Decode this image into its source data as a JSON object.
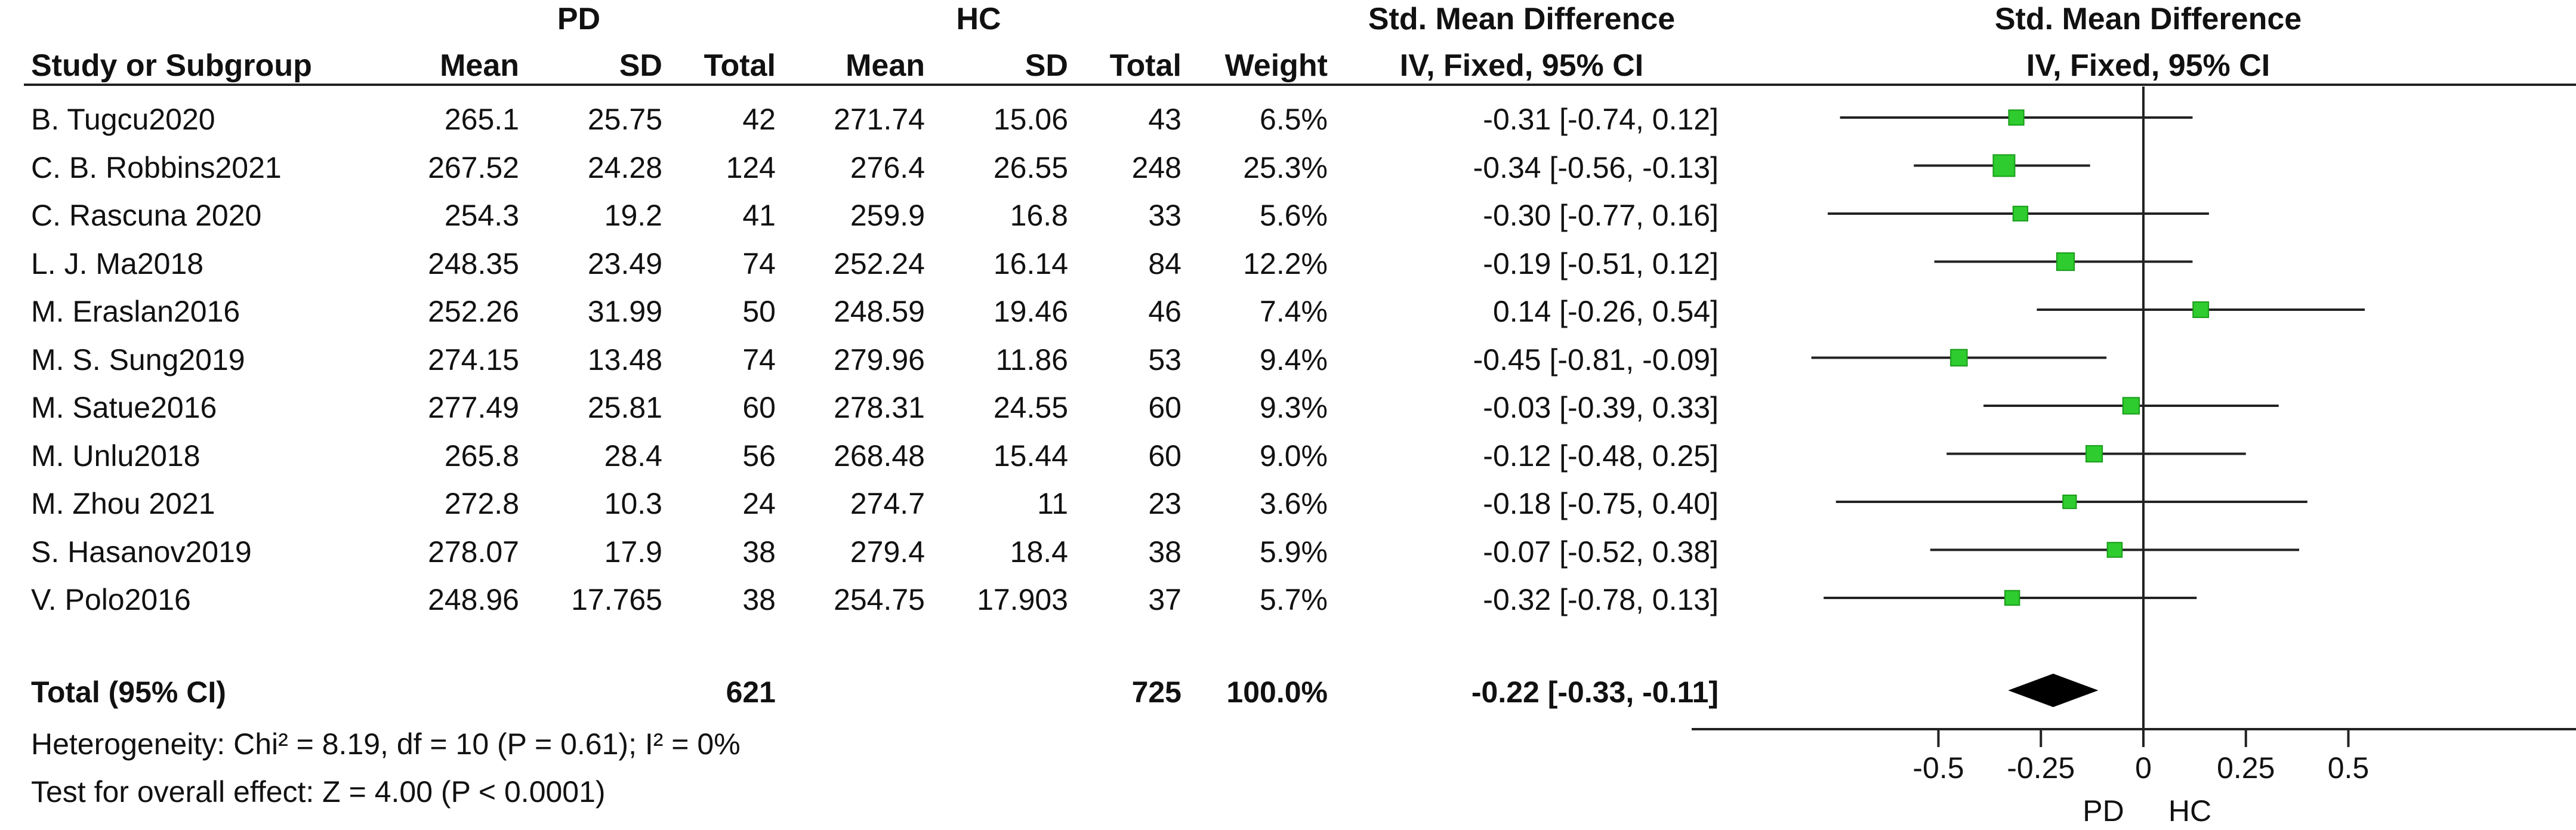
{
  "header": {
    "group1": "PD",
    "group2": "HC",
    "smd_title": "Std. Mean Difference",
    "plot_title": "Std. Mean Difference",
    "col_study": "Study or Subgroup",
    "col_mean1": "Mean",
    "col_sd1": "SD",
    "col_total1": "Total",
    "col_mean2": "Mean",
    "col_sd2": "SD",
    "col_total2": "Total",
    "col_weight": "Weight",
    "col_ci": "IV, Fixed, 95% CI",
    "plot_ci": "IV, Fixed, 95% CI"
  },
  "studies": [
    {
      "name": "B. Tugcu2020",
      "mean1": "265.1",
      "sd1": "25.75",
      "total1": "42",
      "mean2": "271.74",
      "sd2": "15.06",
      "total2": "43",
      "weight": "6.5%",
      "ci_text": "-0.31 [-0.74, 0.12]"
    },
    {
      "name": "C. B. Robbins2021",
      "mean1": "267.52",
      "sd1": "24.28",
      "total1": "124",
      "mean2": "276.4",
      "sd2": "26.55",
      "total2": "248",
      "weight": "25.3%",
      "ci_text": "-0.34 [-0.56, -0.13]"
    },
    {
      "name": "C. Rascuna 2020",
      "mean1": "254.3",
      "sd1": "19.2",
      "total1": "41",
      "mean2": "259.9",
      "sd2": "16.8",
      "total2": "33",
      "weight": "5.6%",
      "ci_text": "-0.30 [-0.77, 0.16]"
    },
    {
      "name": "L. J. Ma2018",
      "mean1": "248.35",
      "sd1": "23.49",
      "total1": "74",
      "mean2": "252.24",
      "sd2": "16.14",
      "total2": "84",
      "weight": "12.2%",
      "ci_text": "-0.19 [-0.51, 0.12]"
    },
    {
      "name": "M. Eraslan2016",
      "mean1": "252.26",
      "sd1": "31.99",
      "total1": "50",
      "mean2": "248.59",
      "sd2": "19.46",
      "total2": "46",
      "weight": "7.4%",
      "ci_text": "0.14 [-0.26, 0.54]"
    },
    {
      "name": "M. S. Sung2019",
      "mean1": "274.15",
      "sd1": "13.48",
      "total1": "74",
      "mean2": "279.96",
      "sd2": "11.86",
      "total2": "53",
      "weight": "9.4%",
      "ci_text": "-0.45 [-0.81, -0.09]"
    },
    {
      "name": "M. Satue2016",
      "mean1": "277.49",
      "sd1": "25.81",
      "total1": "60",
      "mean2": "278.31",
      "sd2": "24.55",
      "total2": "60",
      "weight": "9.3%",
      "ci_text": "-0.03 [-0.39, 0.33]"
    },
    {
      "name": "M. Unlu2018",
      "mean1": "265.8",
      "sd1": "28.4",
      "total1": "56",
      "mean2": "268.48",
      "sd2": "15.44",
      "total2": "60",
      "weight": "9.0%",
      "ci_text": "-0.12 [-0.48, 0.25]"
    },
    {
      "name": "M. Zhou 2021",
      "mean1": "272.8",
      "sd1": "10.3",
      "total1": "24",
      "mean2": "274.7",
      "sd2": "11",
      "total2": "23",
      "weight": "3.6%",
      "ci_text": "-0.18 [-0.75, 0.40]"
    },
    {
      "name": "S. Hasanov2019",
      "mean1": "278.07",
      "sd1": "17.9",
      "total1": "38",
      "mean2": "279.4",
      "sd2": "18.4",
      "total2": "38",
      "weight": "5.9%",
      "ci_text": "-0.07 [-0.52, 0.38]"
    },
    {
      "name": "V. Polo2016",
      "mean1": "248.96",
      "sd1": "17.765",
      "total1": "38",
      "mean2": "254.75",
      "sd2": "17.903",
      "total2": "37",
      "weight": "5.7%",
      "ci_text": "-0.32 [-0.78, 0.13]"
    }
  ],
  "total": {
    "label": "Total (95% CI)",
    "total1": "621",
    "total2": "725",
    "weight": "100.0%",
    "ci_text": "-0.22 [-0.33, -0.11]"
  },
  "footer": {
    "heterogeneity": "Heterogeneity: Chi² = 8.19, df = 10 (P = 0.61); I² = 0%",
    "overall_effect": "Test for overall effect: Z = 4.00 (P < 0.0001)"
  },
  "axis_labels": {
    "left": "PD",
    "right": "HC"
  },
  "colors": {
    "marker": "#2ecc2e",
    "marker_edge": "#1a9c1a",
    "line": "#222222",
    "text": "#111111"
  },
  "chart_data": {
    "type": "forest",
    "xlim": [
      -1.0,
      1.0
    ],
    "ticks": [
      -0.5,
      -0.25,
      0,
      0.25,
      0.5
    ],
    "tick_labels": [
      "-0.5",
      "-0.25",
      "0",
      "0.25",
      "0.5"
    ],
    "studies": [
      {
        "name": "B. Tugcu2020",
        "smd": -0.31,
        "lo": -0.74,
        "hi": 0.12,
        "weight": 6.5
      },
      {
        "name": "C. B. Robbins2021",
        "smd": -0.34,
        "lo": -0.56,
        "hi": -0.13,
        "weight": 25.3
      },
      {
        "name": "C. Rascuna 2020",
        "smd": -0.3,
        "lo": -0.77,
        "hi": 0.16,
        "weight": 5.6
      },
      {
        "name": "L. J. Ma2018",
        "smd": -0.19,
        "lo": -0.51,
        "hi": 0.12,
        "weight": 12.2
      },
      {
        "name": "M. Eraslan2016",
        "smd": 0.14,
        "lo": -0.26,
        "hi": 0.54,
        "weight": 7.4
      },
      {
        "name": "M. S. Sung2019",
        "smd": -0.45,
        "lo": -0.81,
        "hi": -0.09,
        "weight": 9.4
      },
      {
        "name": "M. Satue2016",
        "smd": -0.03,
        "lo": -0.39,
        "hi": 0.33,
        "weight": 9.3
      },
      {
        "name": "M. Unlu2018",
        "smd": -0.12,
        "lo": -0.48,
        "hi": 0.25,
        "weight": 9.0
      },
      {
        "name": "M. Zhou 2021",
        "smd": -0.18,
        "lo": -0.75,
        "hi": 0.4,
        "weight": 3.6
      },
      {
        "name": "S. Hasanov2019",
        "smd": -0.07,
        "lo": -0.52,
        "hi": 0.38,
        "weight": 5.9
      },
      {
        "name": "V. Polo2016",
        "smd": -0.32,
        "lo": -0.78,
        "hi": 0.13,
        "weight": 5.7
      }
    ],
    "overall": {
      "smd": -0.22,
      "lo": -0.33,
      "hi": -0.11
    }
  }
}
